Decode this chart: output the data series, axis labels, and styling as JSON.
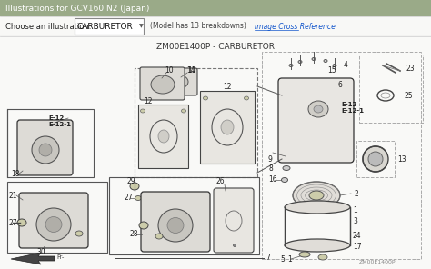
{
  "title_bar_text": "Illustrations for GCV160 N2 (Japan)",
  "title_bar_color": "#9aaa88",
  "title_bar_text_color": "#ffffff",
  "bg_color": "#ffffff",
  "header_bg": "#ffffff",
  "choose_label": "Choose an illustration:",
  "dropdown_text": "CARBURETOR",
  "model_info": "(Model has 13 breakdowns)",
  "cross_ref": "Image Cross Reference",
  "diagram_title": "ZM00E1400P - CARBURETOR",
  "diagram_title_color": "#333333",
  "watermark": "ZM00E1400P",
  "fig_width": 4.74,
  "fig_height": 2.96,
  "dpi": 100
}
